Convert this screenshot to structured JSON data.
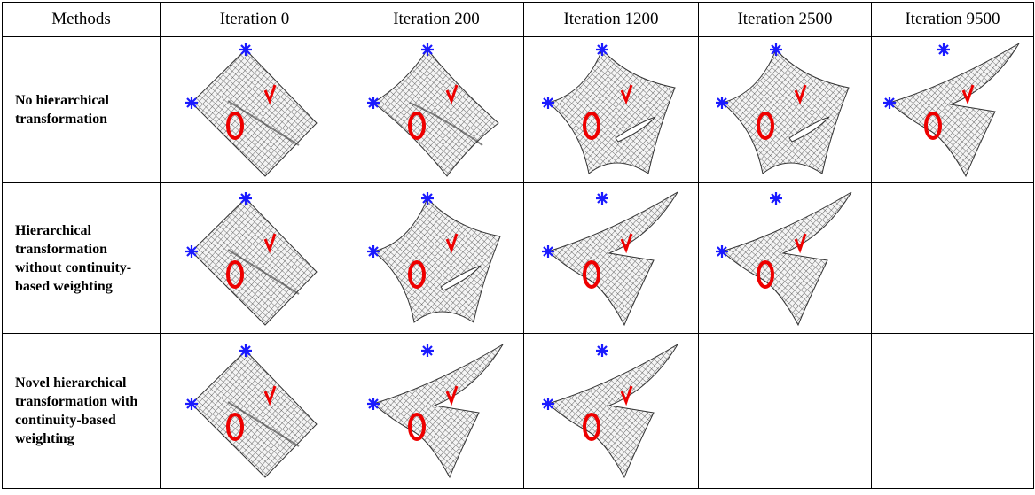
{
  "table": {
    "header": [
      "Methods",
      "Iteration 0",
      "Iteration 200",
      "Iteration 1200",
      "Iteration 2500",
      "Iteration 9500"
    ],
    "rows": [
      {
        "label": "No hierarchical transformation"
      },
      {
        "label": "Hierarchical transformation without continuity-based weighting"
      },
      {
        "label": "Novel hierarchical transformation with continuity-based weighting"
      }
    ]
  }
}
